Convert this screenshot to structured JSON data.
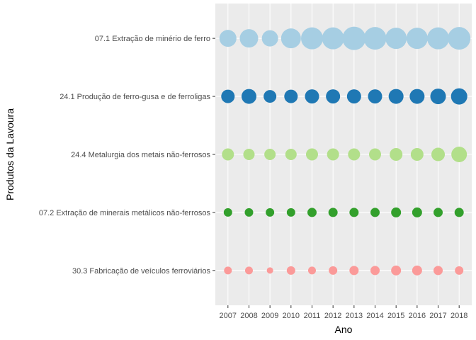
{
  "chart_data": {
    "type": "scatter",
    "xlabel": "Ano",
    "ylabel": "Produtos da Lavoura",
    "categories_x": [
      "2007",
      "2008",
      "2009",
      "2010",
      "2011",
      "2012",
      "2013",
      "2014",
      "2015",
      "2016",
      "2017",
      "2018"
    ],
    "categories_y": [
      "07.1 Extração de minério de ferro",
      "24.1 Produção de ferro-gusa e de ferroligas",
      "24.4 Metalurgia dos metais não-ferrosos",
      "07.2 Extração de minerais metálicos não-ferrosos",
      "30.3 Fabricação de veículos ferroviários"
    ],
    "series": [
      {
        "name": "07.1 Extração de minério de ferro",
        "color": "#a6cee3",
        "values": [
          12,
          13,
          11.5,
          14,
          15.5,
          15.5,
          16.5,
          16,
          15,
          15,
          15.5,
          16
        ]
      },
      {
        "name": "24.1 Produção de ferro-gusa e de ferroligas",
        "color": "#1f78b4",
        "values": [
          9.5,
          10.5,
          9,
          9.5,
          10,
          10,
          10,
          10,
          10.5,
          10.5,
          11,
          11.5
        ]
      },
      {
        "name": "24.4 Metalurgia dos metais não-ferrosos",
        "color": "#b2df8a",
        "values": [
          8.5,
          8,
          8,
          8,
          8.5,
          8.5,
          8.5,
          8.5,
          9,
          9,
          9.5,
          11
        ]
      },
      {
        "name": "07.2 Extração de minerais metálicos não-ferrosos",
        "color": "#33a02c",
        "values": [
          6,
          6,
          6,
          6,
          6.5,
          6.5,
          6.5,
          6.5,
          7,
          7,
          6.5,
          6.5
        ]
      },
      {
        "name": "30.3 Fabricação de veículos ferroviários",
        "color": "#fb9a99",
        "values": [
          5.5,
          5.5,
          4.5,
          6,
          5.5,
          6,
          6.5,
          6.5,
          7,
          7,
          6.5,
          6
        ]
      }
    ],
    "size_encoding": "point size",
    "grid": true,
    "legend": "none"
  }
}
